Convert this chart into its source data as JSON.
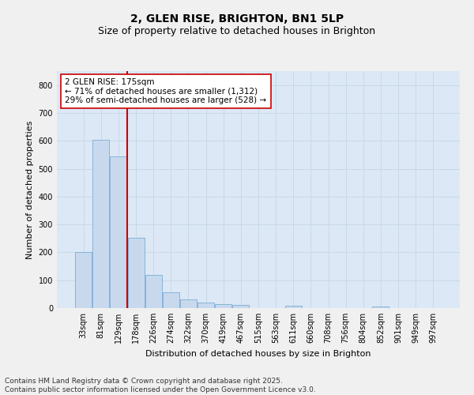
{
  "title": "2, GLEN RISE, BRIGHTON, BN1 5LP",
  "subtitle": "Size of property relative to detached houses in Brighton",
  "xlabel": "Distribution of detached houses by size in Brighton",
  "ylabel": "Number of detached properties",
  "categories": [
    "33sqm",
    "81sqm",
    "129sqm",
    "178sqm",
    "226sqm",
    "274sqm",
    "322sqm",
    "370sqm",
    "419sqm",
    "467sqm",
    "515sqm",
    "563sqm",
    "611sqm",
    "660sqm",
    "708sqm",
    "756sqm",
    "804sqm",
    "852sqm",
    "901sqm",
    "949sqm",
    "997sqm"
  ],
  "values": [
    202,
    604,
    544,
    251,
    120,
    57,
    32,
    20,
    14,
    10,
    0,
    0,
    8,
    0,
    0,
    0,
    0,
    6,
    0,
    0,
    0
  ],
  "bar_color": "#c8d9ee",
  "bar_edge_color": "#7aadd4",
  "highlight_label": "2 GLEN RISE: 175sqm",
  "annotation_line1": "← 71% of detached houses are smaller (1,312)",
  "annotation_line2": "29% of semi-detached houses are larger (528) →",
  "annotation_box_color": "#ffffff",
  "annotation_box_edge": "#cc0000",
  "annotation_text_color": "#000000",
  "vline_color": "#cc0000",
  "grid_color": "#c8d8e8",
  "background_color": "#dce8f5",
  "fig_background": "#f0f0f0",
  "ylim": [
    0,
    850
  ],
  "yticks": [
    0,
    100,
    200,
    300,
    400,
    500,
    600,
    700,
    800
  ],
  "footer_line1": "Contains HM Land Registry data © Crown copyright and database right 2025.",
  "footer_line2": "Contains public sector information licensed under the Open Government Licence v3.0.",
  "title_fontsize": 10,
  "subtitle_fontsize": 9,
  "axis_label_fontsize": 8,
  "tick_fontsize": 7,
  "annotation_fontsize": 7.5,
  "footer_fontsize": 6.5
}
